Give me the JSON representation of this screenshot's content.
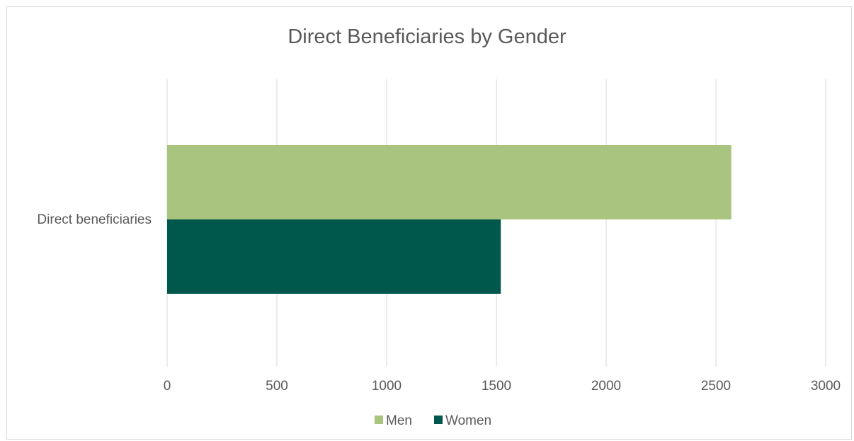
{
  "chart_data": {
    "type": "bar",
    "orientation": "horizontal",
    "title": "Direct Beneficiaries by Gender",
    "xlabel": "",
    "ylabel": "",
    "categories": [
      "Direct beneficiaries"
    ],
    "series": [
      {
        "name": "Men",
        "values": [
          2570
        ],
        "color": "#a9c47f"
      },
      {
        "name": "Women",
        "values": [
          1520
        ],
        "color": "#00574b"
      }
    ],
    "xlim": [
      0,
      3000
    ],
    "xticks": [
      "0",
      "500",
      "1000",
      "1500",
      "2000",
      "2500",
      "3000"
    ],
    "grid": true,
    "legend_position": "bottom"
  }
}
